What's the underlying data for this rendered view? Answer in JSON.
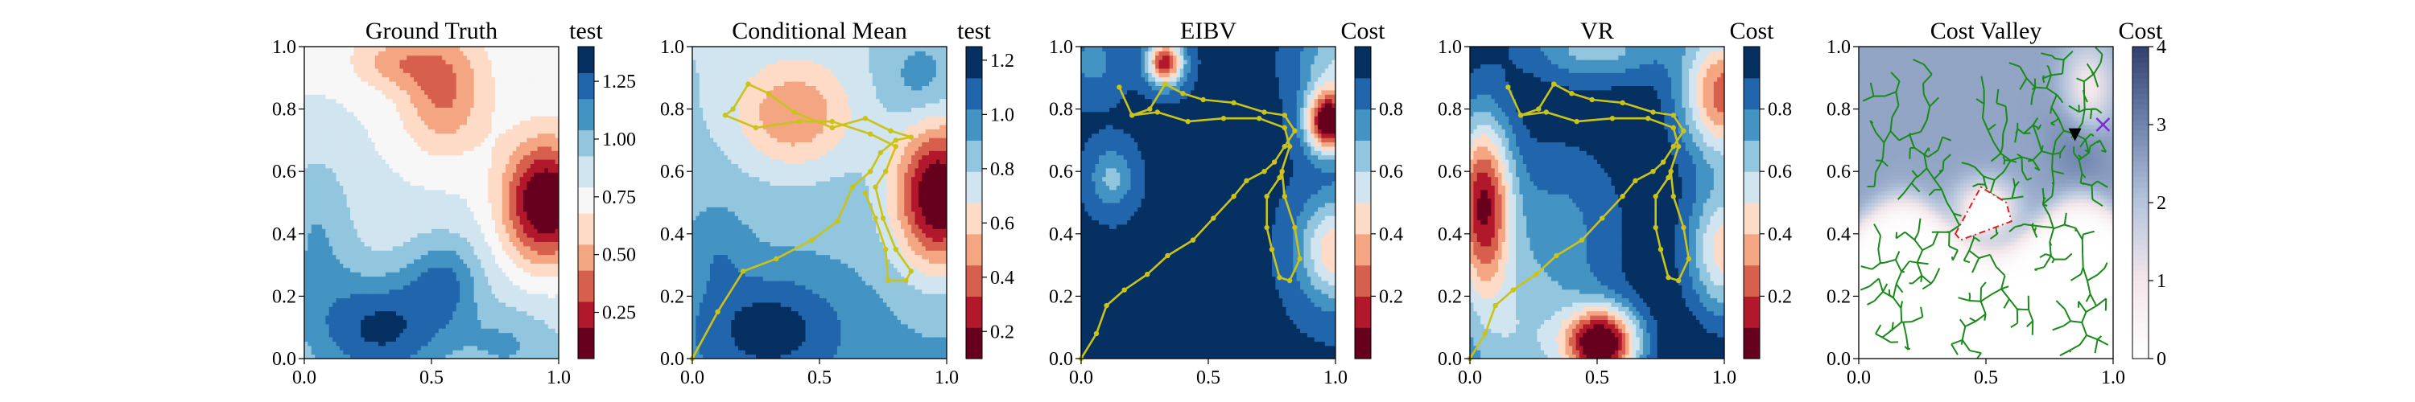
{
  "colors": {
    "rdbu": [
      "#67001f",
      "#b2182b",
      "#d6604d",
      "#f4a582",
      "#fddbc7",
      "#f7f7f7",
      "#d1e5f0",
      "#92c5de",
      "#4393c3",
      "#2166ac",
      "#053061"
    ],
    "path": "#c9c31a",
    "tree": "#1a8a1a",
    "valley_low": "#ffffff",
    "valley_high": "#2f3e6e",
    "marker_robot": "#000000",
    "marker_target": "#7a2ad6",
    "polygon": "#e02020"
  },
  "chart_data": [
    {
      "type": "heatmap",
      "title": "Ground Truth",
      "colorbar_label": "test",
      "colorbar_ticks": [
        "0.25",
        "0.50",
        "0.75",
        "1.00",
        "1.25"
      ],
      "colorbar_values": [
        0.25,
        0.5,
        0.75,
        1.0,
        1.25
      ],
      "colorbar_range": [
        0.05,
        1.4
      ],
      "xlim": [
        0.0,
        1.0
      ],
      "ylim": [
        0.0,
        1.0
      ],
      "xticks": [
        "0.0",
        "0.5",
        "1.0"
      ],
      "yticks": [
        "0.0",
        "0.2",
        "0.4",
        "0.6",
        "0.8",
        "1.0"
      ]
    },
    {
      "type": "heatmap",
      "title": "Conditional Mean",
      "colorbar_label": "test",
      "colorbar_ticks": [
        "0.2",
        "0.4",
        "0.6",
        "0.8",
        "1.0",
        "1.2"
      ],
      "colorbar_values": [
        0.2,
        0.4,
        0.6,
        0.8,
        1.0,
        1.2
      ],
      "colorbar_range": [
        0.1,
        1.25
      ],
      "xlim": [
        0.0,
        1.0
      ],
      "ylim": [
        0.0,
        1.0
      ],
      "xticks": [
        "0.0",
        "0.5",
        "1.0"
      ],
      "yticks": [
        "0.0",
        "0.2",
        "0.4",
        "0.6",
        "0.8",
        "1.0"
      ],
      "path": [
        [
          0.0,
          0.0
        ],
        [
          0.1,
          0.15
        ],
        [
          0.2,
          0.28
        ],
        [
          0.33,
          0.32
        ],
        [
          0.47,
          0.38
        ],
        [
          0.57,
          0.44
        ],
        [
          0.63,
          0.55
        ],
        [
          0.7,
          0.6
        ],
        [
          0.74,
          0.66
        ],
        [
          0.8,
          0.7
        ],
        [
          0.86,
          0.71
        ],
        [
          0.78,
          0.73
        ],
        [
          0.68,
          0.77
        ],
        [
          0.55,
          0.74
        ],
        [
          0.4,
          0.79
        ],
        [
          0.3,
          0.85
        ],
        [
          0.22,
          0.88
        ],
        [
          0.16,
          0.8
        ],
        [
          0.13,
          0.78
        ],
        [
          0.25,
          0.74
        ],
        [
          0.42,
          0.76
        ],
        [
          0.55,
          0.76
        ],
        [
          0.7,
          0.72
        ],
        [
          0.8,
          0.68
        ],
        [
          0.76,
          0.6
        ],
        [
          0.72,
          0.55
        ],
        [
          0.75,
          0.45
        ],
        [
          0.8,
          0.35
        ],
        [
          0.86,
          0.28
        ],
        [
          0.84,
          0.25
        ],
        [
          0.77,
          0.25
        ],
        [
          0.76,
          0.35
        ],
        [
          0.72,
          0.45
        ],
        [
          0.68,
          0.53
        ]
      ]
    },
    {
      "type": "heatmap",
      "title": "EIBV",
      "colorbar_label": "Cost",
      "colorbar_ticks": [
        "0.2",
        "0.4",
        "0.6",
        "0.8"
      ],
      "colorbar_values": [
        0.2,
        0.4,
        0.6,
        0.8
      ],
      "colorbar_range": [
        0.0,
        1.0
      ],
      "xlim": [
        0.0,
        1.0
      ],
      "ylim": [
        0.0,
        1.0
      ],
      "xticks": [
        "0.0",
        "0.5",
        "1.0"
      ],
      "yticks": [
        "0.0",
        "0.2",
        "0.4",
        "0.6",
        "0.8",
        "1.0"
      ],
      "path": [
        [
          0.0,
          0.0
        ],
        [
          0.06,
          0.08
        ],
        [
          0.1,
          0.17
        ],
        [
          0.17,
          0.22
        ],
        [
          0.26,
          0.27
        ],
        [
          0.34,
          0.33
        ],
        [
          0.44,
          0.38
        ],
        [
          0.52,
          0.45
        ],
        [
          0.6,
          0.52
        ],
        [
          0.65,
          0.57
        ],
        [
          0.72,
          0.6
        ],
        [
          0.76,
          0.63
        ],
        [
          0.8,
          0.68
        ],
        [
          0.84,
          0.73
        ],
        [
          0.8,
          0.78
        ],
        [
          0.72,
          0.79
        ],
        [
          0.6,
          0.82
        ],
        [
          0.48,
          0.83
        ],
        [
          0.4,
          0.85
        ],
        [
          0.33,
          0.88
        ],
        [
          0.27,
          0.8
        ],
        [
          0.2,
          0.78
        ],
        [
          0.15,
          0.87
        ],
        [
          0.2,
          0.78
        ],
        [
          0.3,
          0.79
        ],
        [
          0.42,
          0.76
        ],
        [
          0.56,
          0.77
        ],
        [
          0.7,
          0.77
        ],
        [
          0.8,
          0.74
        ],
        [
          0.82,
          0.68
        ],
        [
          0.78,
          0.58
        ],
        [
          0.73,
          0.52
        ],
        [
          0.73,
          0.42
        ],
        [
          0.75,
          0.35
        ],
        [
          0.78,
          0.26
        ],
        [
          0.82,
          0.25
        ],
        [
          0.86,
          0.32
        ],
        [
          0.84,
          0.42
        ],
        [
          0.8,
          0.52
        ],
        [
          0.79,
          0.6
        ]
      ]
    },
    {
      "type": "heatmap",
      "title": "VR",
      "colorbar_label": "Cost",
      "colorbar_ticks": [
        "0.2",
        "0.4",
        "0.6",
        "0.8"
      ],
      "colorbar_values": [
        0.2,
        0.4,
        0.6,
        0.8
      ],
      "colorbar_range": [
        0.0,
        1.0
      ],
      "xlim": [
        0.0,
        1.0
      ],
      "ylim": [
        0.0,
        1.0
      ],
      "xticks": [
        "0.0",
        "0.5",
        "1.0"
      ],
      "yticks": [
        "0.0",
        "0.2",
        "0.4",
        "0.6",
        "0.8",
        "1.0"
      ],
      "path": [
        [
          0.0,
          0.0
        ],
        [
          0.06,
          0.08
        ],
        [
          0.1,
          0.17
        ],
        [
          0.17,
          0.22
        ],
        [
          0.26,
          0.27
        ],
        [
          0.34,
          0.33
        ],
        [
          0.44,
          0.38
        ],
        [
          0.52,
          0.45
        ],
        [
          0.6,
          0.52
        ],
        [
          0.65,
          0.57
        ],
        [
          0.72,
          0.6
        ],
        [
          0.76,
          0.63
        ],
        [
          0.8,
          0.68
        ],
        [
          0.84,
          0.73
        ],
        [
          0.8,
          0.78
        ],
        [
          0.72,
          0.79
        ],
        [
          0.6,
          0.82
        ],
        [
          0.48,
          0.83
        ],
        [
          0.4,
          0.85
        ],
        [
          0.33,
          0.88
        ],
        [
          0.27,
          0.8
        ],
        [
          0.2,
          0.78
        ],
        [
          0.15,
          0.87
        ],
        [
          0.2,
          0.78
        ],
        [
          0.3,
          0.79
        ],
        [
          0.42,
          0.76
        ],
        [
          0.56,
          0.77
        ],
        [
          0.7,
          0.77
        ],
        [
          0.8,
          0.74
        ],
        [
          0.82,
          0.68
        ],
        [
          0.78,
          0.58
        ],
        [
          0.73,
          0.52
        ],
        [
          0.73,
          0.42
        ],
        [
          0.75,
          0.35
        ],
        [
          0.78,
          0.26
        ],
        [
          0.82,
          0.25
        ],
        [
          0.86,
          0.32
        ],
        [
          0.84,
          0.42
        ],
        [
          0.8,
          0.52
        ],
        [
          0.79,
          0.6
        ]
      ]
    },
    {
      "type": "heatmap",
      "title": "Cost Valley",
      "colorbar_label": "Cost",
      "colorbar_ticks": [
        "0",
        "1",
        "2",
        "3",
        "4"
      ],
      "colorbar_values": [
        0,
        1,
        2,
        3,
        4
      ],
      "colorbar_range": [
        0,
        4
      ],
      "xlim": [
        0.0,
        1.0
      ],
      "ylim": [
        0.0,
        1.0
      ],
      "xticks": [
        "0.0",
        "0.5",
        "1.0"
      ],
      "yticks": [
        "0.0",
        "0.2",
        "0.4",
        "0.6",
        "0.8",
        "1.0"
      ],
      "robot_position": [
        0.85,
        0.72
      ],
      "target_position": [
        0.96,
        0.75
      ],
      "obstacle_polygon": [
        [
          0.38,
          0.4
        ],
        [
          0.48,
          0.55
        ],
        [
          0.58,
          0.5
        ],
        [
          0.6,
          0.44
        ],
        [
          0.4,
          0.38
        ]
      ]
    }
  ]
}
